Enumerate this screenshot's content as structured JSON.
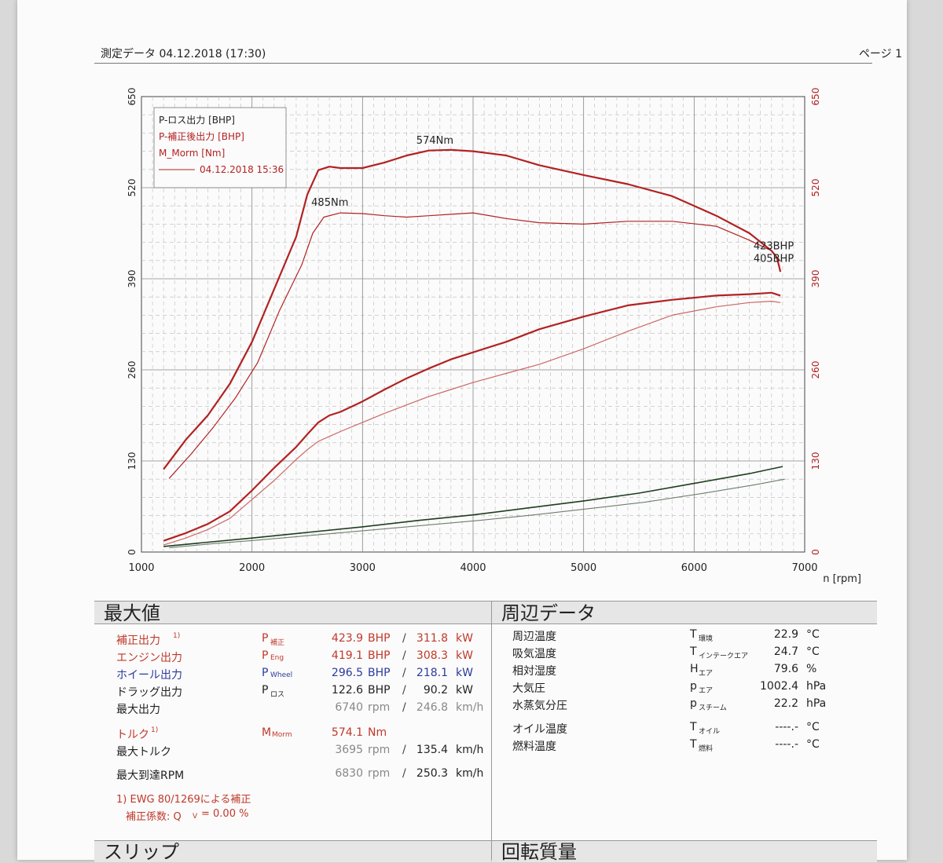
{
  "header": {
    "title": "測定データ 04.12.2018 (17:30)",
    "page": "ページ 1"
  },
  "chart_data": {
    "type": "line",
    "x_label": "n [rpm]",
    "xlim": [
      1000,
      7000
    ],
    "ylim": [
      0,
      650
    ],
    "x_ticks": [
      "1000",
      "2000",
      "3000",
      "4000",
      "5000",
      "6000",
      "7000"
    ],
    "y_ticks": [
      "0",
      "130",
      "260",
      "390",
      "520",
      "650"
    ],
    "y_ticks_right": [
      "0",
      "130",
      "260",
      "390",
      "520",
      "650"
    ],
    "legend": [
      "P-ロス出力 [BHP]",
      "P-補正後出力 [BHP]",
      "M_Morm [Nm]",
      "04.12.2018 15:36"
    ],
    "annotations": [
      {
        "text": "574Nm",
        "x": 3700,
        "y": 574
      },
      {
        "text": "485Nm",
        "x": 2750,
        "y": 485
      },
      {
        "text": "423BHP",
        "x": 6750,
        "y": 423
      },
      {
        "text": "405BHP",
        "x": 6750,
        "y": 405
      }
    ],
    "series": [
      {
        "color": "#b22222",
        "width": 2.2,
        "x": [
          1200,
          1400,
          1600,
          1800,
          2000,
          2200,
          2400,
          2500,
          2600,
          2700,
          2800,
          3000,
          3200,
          3400,
          3600,
          3800,
          4000,
          4300,
          4600,
          5000,
          5400,
          5800,
          6200,
          6500,
          6700,
          6750,
          6780
        ],
        "y": [
          118,
          160,
          195,
          240,
          300,
          375,
          450,
          510,
          545,
          550,
          548,
          548,
          556,
          566,
          573,
          574,
          572,
          566,
          552,
          538,
          525,
          508,
          480,
          455,
          430,
          420,
          400
        ]
      },
      {
        "color": "#b22222",
        "width": 1.2,
        "x": [
          1250,
          1450,
          1650,
          1850,
          2050,
          2250,
          2450,
          2550,
          2650,
          2800,
          3000,
          3200,
          3400,
          3600,
          3800,
          4000,
          4300,
          4600,
          5000,
          5400,
          5800,
          6200,
          6500,
          6700,
          6780
        ],
        "y": [
          105,
          140,
          178,
          220,
          270,
          345,
          410,
          455,
          478,
          484,
          483,
          480,
          478,
          480,
          482,
          484,
          476,
          470,
          468,
          472,
          472,
          465,
          445,
          430,
          415
        ]
      },
      {
        "color": "#b22222",
        "width": 2.2,
        "x": [
          1200,
          1400,
          1600,
          1800,
          2000,
          2200,
          2400,
          2500,
          2600,
          2700,
          2800,
          3000,
          3200,
          3400,
          3600,
          3800,
          4000,
          4300,
          4600,
          5000,
          5400,
          5800,
          6200,
          6500,
          6700,
          6780
        ],
        "y": [
          16,
          27,
          40,
          58,
          88,
          120,
          150,
          168,
          185,
          195,
          200,
          215,
          232,
          248,
          262,
          275,
          285,
          300,
          318,
          336,
          352,
          360,
          366,
          368,
          370,
          366
        ]
      },
      {
        "color": "#cc6666",
        "width": 1.2,
        "x": [
          1200,
          1400,
          1600,
          1800,
          2000,
          2200,
          2400,
          2500,
          2600,
          2700,
          2800,
          3000,
          3200,
          3400,
          3600,
          3800,
          4000,
          4300,
          4600,
          5000,
          5400,
          5800,
          6200,
          6500,
          6700,
          6780
        ],
        "y": [
          10,
          20,
          32,
          48,
          75,
          102,
          132,
          146,
          158,
          165,
          172,
          185,
          198,
          210,
          222,
          232,
          242,
          255,
          268,
          290,
          315,
          338,
          350,
          356,
          358,
          356
        ]
      },
      {
        "color": "#1f3d1f",
        "width": 1.6,
        "x": [
          1200,
          1600,
          2000,
          2500,
          3000,
          3500,
          4000,
          4500,
          5000,
          5500,
          6000,
          6500,
          6800
        ],
        "y": [
          8,
          14,
          20,
          28,
          36,
          45,
          53,
          63,
          73,
          84,
          98,
          112,
          122
        ]
      },
      {
        "color": "#6e7e6e",
        "width": 1.1,
        "x": [
          1250,
          1650,
          2050,
          2550,
          3050,
          3550,
          4050,
          4550,
          5050,
          5550,
          6050,
          6550,
          6820
        ],
        "y": [
          6,
          12,
          17,
          24,
          31,
          38,
          45,
          53,
          62,
          71,
          83,
          96,
          104
        ]
      }
    ]
  },
  "max_panel": {
    "heading": "最大値",
    "rows": [
      {
        "label": "補正出力",
        "sup": "1)",
        "sym": "P",
        "sub": "補正",
        "v1": "423.9",
        "u1": "BHP",
        "sep": "/",
        "v2": "311.8",
        "u2": "kW",
        "label_color": "red",
        "value_color": "red"
      },
      {
        "label": "エンジン出力",
        "sup": "",
        "sym": "P",
        "sub": "Eng",
        "v1": "419.1",
        "u1": "BHP",
        "sep": "/",
        "v2": "308.3",
        "u2": "kW",
        "label_color": "red",
        "value_color": "red"
      },
      {
        "label": "ホイール出力",
        "sup": "",
        "sym": "P",
        "sub": "Wheel",
        "v1": "296.5",
        "u1": "BHP",
        "sep": "/",
        "v2": "218.1",
        "u2": "kW",
        "label_color": "blue",
        "value_color": "blue"
      },
      {
        "label": "ドラッグ出力",
        "sup": "",
        "sym": "P",
        "sub": "ロス",
        "v1": "122.6",
        "u1": "BHP",
        "sep": "/",
        "v2": "90.2",
        "u2": "kW",
        "label_color": "black",
        "value_color": "black"
      },
      {
        "label": "最大出力",
        "sup": "",
        "sym": "",
        "sub": "",
        "v1": "6740",
        "u1": "rpm",
        "sep": "/",
        "v2": "246.8",
        "u2": "km/h",
        "label_color": "black",
        "value_color": "gray"
      }
    ],
    "torque": {
      "label": "トルク",
      "sup": "1)",
      "sym": "M",
      "sub": "Morm",
      "v1": "574.1",
      "u1": "Nm"
    },
    "max_torque": {
      "label": "最大トルク",
      "v1": "3695",
      "u1": "rpm",
      "sep": "/",
      "v2": "135.4",
      "u2": "km/h"
    },
    "max_rpm": {
      "label": "最大到達RPM",
      "v1": "6830",
      "u1": "rpm",
      "sep": "/",
      "v2": "250.3",
      "u2": "km/h"
    },
    "footnote1": "1) EWG 80/1269による補正",
    "footnote2": "補正係数: Q",
    "footnote2_sub": "V",
    "footnote2_val": "=    0.00 %"
  },
  "env_panel": {
    "heading": "周辺データ",
    "rows": [
      {
        "label": "周辺温度",
        "sym": "T",
        "sub": "環境",
        "val": "22.9",
        "unit": "°C"
      },
      {
        "label": "吸気温度",
        "sym": "T",
        "sub": "インテークエア",
        "val": "24.7",
        "unit": "°C"
      },
      {
        "label": "相対湿度",
        "sym": "H",
        "sub": "エア",
        "val": "79.6",
        "unit": "%"
      },
      {
        "label": "大気圧",
        "sym": "p",
        "sub": "エア",
        "val": "1002.4",
        "unit": "hPa"
      },
      {
        "label": "水蒸気分圧",
        "sym": "p",
        "sub": "スチーム",
        "val": "22.2",
        "unit": "hPa"
      }
    ],
    "rows2": [
      {
        "label": "オイル温度",
        "sym": "T",
        "sub": "オイル",
        "val": "----.-",
        "unit": "°C"
      },
      {
        "label": "燃料温度",
        "sym": "T",
        "sub": "燃料",
        "val": "----.-",
        "unit": "°C"
      }
    ]
  },
  "bottom": {
    "slip": "スリップ",
    "rotmass": "回転質量"
  }
}
